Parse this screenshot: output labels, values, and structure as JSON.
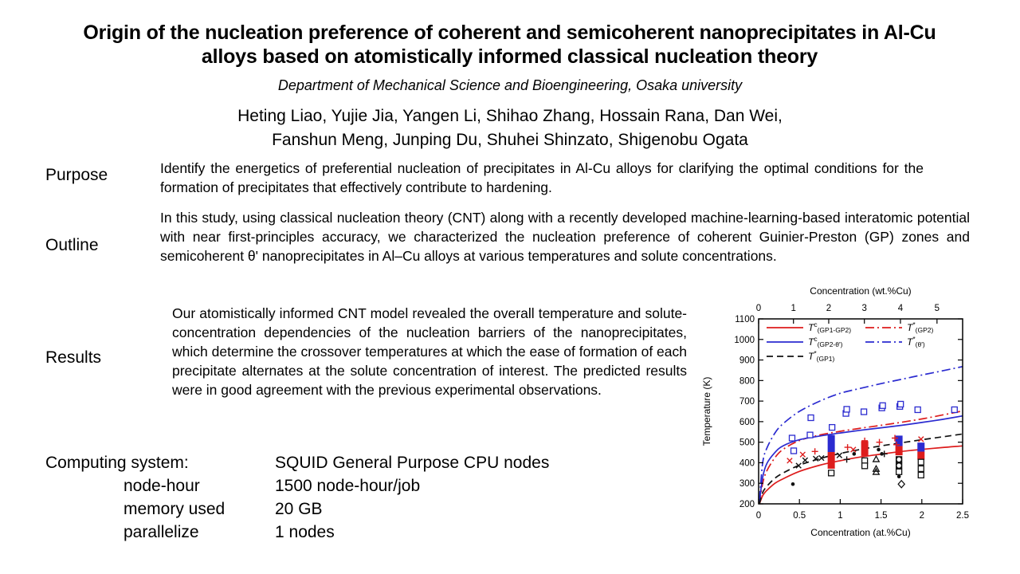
{
  "slide": {
    "title": "Origin of the nucleation preference of coherent and semicoherent nanoprecipitates in Al-Cu alloys based on atomistically informed classical nucleation theory",
    "department": "Department of Mechanical Science and Bioengineering, Osaka university",
    "authors": [
      "Heting Liao, Yujie Jia, Yangen Li, Shihao Zhang, Hossain Rana, Dan Wei,",
      "Fanshun Meng, Junping Du, Shuhei Shinzato, Shigenobu Ogata"
    ]
  },
  "sections": {
    "purpose": {
      "label": "Purpose",
      "text": "Identify the energetics of preferential nucleation of precipitates in Al-Cu alloys for clarifying the optimal conditions for the formation of precipitates that effectively contribute to hardening."
    },
    "outline": {
      "label": "Outline",
      "text": "In this study, using classical nucleation theory (CNT) along with a recently developed machine-learning-based interatomic potential with near first-principles accuracy, we characterized the nucleation preference of coherent Guinier-Preston (GP) zones and semicoherent θ' nanoprecipitates in Al–Cu alloys at various temperatures and solute concentrations."
    },
    "results": {
      "label": "Results",
      "text": "Our atomistically informed CNT model revealed the overall temperature and solute-concentration dependencies of the nucleation barriers of the nanoprecipitates, which determine the crossover temperatures at which the ease of formation of each precipitate alternates at the solute concentration of interest. The predicted results were in good agreement with the previous experimental observations."
    }
  },
  "computing": {
    "rows": [
      {
        "label": "Computing system:",
        "value": "SQUID General Purpose CPU nodes"
      },
      {
        "label": "node-hour",
        "value": "1500 node-hour/job"
      },
      {
        "label": "memory used",
        "value": "20 GB"
      },
      {
        "label": "parallelize",
        "value": "1 nodes"
      }
    ]
  },
  "chart_data": {
    "type": "line",
    "title": "",
    "colors": {
      "red": "#dd1c1c",
      "blue": "#2b2bd0",
      "black": "#111111"
    },
    "x_axis_bottom": {
      "label": "Concentration (at.%Cu)",
      "range": [
        0,
        2.5
      ],
      "ticks": [
        0,
        0.5,
        1,
        1.5,
        2,
        2.5
      ]
    },
    "x_axis_top": {
      "label": "Concentration (wt.%Cu)",
      "ticks": [
        0,
        1,
        2,
        3,
        4,
        5
      ],
      "tick_positions_at_pct": [
        0,
        0.427,
        0.859,
        1.296,
        1.738,
        2.186
      ]
    },
    "y_axis": {
      "label": "Temperature (K)",
      "range": [
        200,
        1100
      ],
      "ticks": [
        200,
        300,
        400,
        500,
        600,
        700,
        800,
        900,
        1000,
        1100
      ]
    },
    "grid": false,
    "legend_position": "top-left-inside",
    "curves": [
      {
        "main": "T",
        "sup": "c",
        "sub": "(GP1-GP2)",
        "color": "red",
        "dash": "solid",
        "legend_col": 0,
        "legend_row": 0,
        "points": [
          [
            0.01,
            200
          ],
          [
            0.05,
            240
          ],
          [
            0.1,
            265
          ],
          [
            0.2,
            300
          ],
          [
            0.3,
            322
          ],
          [
            0.5,
            358
          ],
          [
            0.75,
            388
          ],
          [
            1,
            410
          ],
          [
            1.25,
            428
          ],
          [
            1.5,
            442
          ],
          [
            1.75,
            455
          ],
          [
            2,
            465
          ],
          [
            2.25,
            474
          ],
          [
            2.5,
            482
          ]
        ]
      },
      {
        "main": "T",
        "sup": "*",
        "sub": "(GP2)",
        "color": "red",
        "dash": "dashdot",
        "legend_col": 1,
        "legend_row": 0,
        "points": [
          [
            0.01,
            200
          ],
          [
            0.05,
            300
          ],
          [
            0.1,
            360
          ],
          [
            0.2,
            425
          ],
          [
            0.3,
            465
          ],
          [
            0.5,
            508
          ],
          [
            0.75,
            535
          ],
          [
            1,
            553
          ],
          [
            1.25,
            568
          ],
          [
            1.5,
            582
          ],
          [
            1.75,
            597
          ],
          [
            2,
            613
          ],
          [
            2.25,
            632
          ],
          [
            2.5,
            652
          ]
        ]
      },
      {
        "main": "T",
        "sup": "c",
        "sub": "(GP2-θ')",
        "color": "blue",
        "dash": "solid",
        "legend_col": 0,
        "legend_row": 1,
        "points": [
          [
            0.01,
            210
          ],
          [
            0.05,
            330
          ],
          [
            0.1,
            395
          ],
          [
            0.2,
            450
          ],
          [
            0.3,
            482
          ],
          [
            0.5,
            512
          ],
          [
            0.75,
            530
          ],
          [
            1,
            545
          ],
          [
            1.25,
            558
          ],
          [
            1.5,
            570
          ],
          [
            1.75,
            582
          ],
          [
            2,
            596
          ],
          [
            2.25,
            611
          ],
          [
            2.5,
            628
          ]
        ]
      },
      {
        "main": "T",
        "sup": "*",
        "sub": "(θ')",
        "color": "blue",
        "dash": "dashdot",
        "legend_col": 1,
        "legend_row": 1,
        "points": [
          [
            0.01,
            220
          ],
          [
            0.05,
            400
          ],
          [
            0.1,
            470
          ],
          [
            0.2,
            545
          ],
          [
            0.3,
            590
          ],
          [
            0.5,
            650
          ],
          [
            0.75,
            700
          ],
          [
            1,
            738
          ],
          [
            1.25,
            762
          ],
          [
            1.5,
            785
          ],
          [
            1.75,
            806
          ],
          [
            2,
            827
          ],
          [
            2.25,
            847
          ],
          [
            2.5,
            868
          ]
        ]
      },
      {
        "main": "T",
        "sup": "*",
        "sub": "(GP1)",
        "color": "black",
        "dash": "dashed",
        "legend_col": 0,
        "legend_row": 2,
        "points": [
          [
            0.01,
            200
          ],
          [
            0.05,
            255
          ],
          [
            0.1,
            285
          ],
          [
            0.2,
            325
          ],
          [
            0.3,
            350
          ],
          [
            0.5,
            388
          ],
          [
            0.75,
            420
          ],
          [
            1,
            445
          ],
          [
            1.25,
            465
          ],
          [
            1.5,
            482
          ],
          [
            1.75,
            497
          ],
          [
            2,
            512
          ],
          [
            2.25,
            526
          ],
          [
            2.5,
            540
          ]
        ]
      }
    ],
    "bars": [
      {
        "x": 0.89,
        "blue": [
          452,
          535
        ],
        "red": [
          371,
          452
        ]
      },
      {
        "x": 1.3,
        "blue": null,
        "red": [
          433,
          505
        ]
      },
      {
        "x": 1.72,
        "blue": [
          481,
          532
        ],
        "red": [
          436,
          481
        ]
      },
      {
        "x": 1.99,
        "blue": [
          454,
          498
        ],
        "red": [
          415,
          454
        ]
      }
    ],
    "scatter": [
      {
        "name": "blue-open-square",
        "marker": "square",
        "color": "blue",
        "points": [
          [
            0.41,
            520
          ],
          [
            0.43,
            458
          ],
          [
            0.63,
            535
          ],
          [
            0.64,
            619
          ],
          [
            0.9,
            572
          ],
          [
            1.07,
            640
          ],
          [
            1.08,
            660
          ],
          [
            1.29,
            648
          ],
          [
            1.51,
            667
          ],
          [
            1.52,
            678
          ],
          [
            1.73,
            674
          ],
          [
            1.74,
            685
          ],
          [
            1.95,
            658
          ],
          [
            2.4,
            658
          ]
        ]
      },
      {
        "name": "black-x",
        "marker": "x",
        "color": "black",
        "points": [
          [
            0.49,
            386
          ],
          [
            0.57,
            412
          ],
          [
            0.7,
            420
          ],
          [
            0.77,
            423
          ],
          [
            0.99,
            436
          ]
        ]
      },
      {
        "name": "red-x",
        "marker": "x",
        "color": "red",
        "points": [
          [
            0.38,
            410
          ],
          [
            0.54,
            440
          ],
          [
            1.16,
            464
          ],
          [
            1.99,
            515
          ]
        ]
      },
      {
        "name": "red-plus",
        "marker": "plus",
        "color": "red",
        "points": [
          [
            0.69,
            455
          ],
          [
            1.09,
            475
          ],
          [
            1.3,
            507
          ],
          [
            1.48,
            500
          ],
          [
            1.67,
            520
          ],
          [
            1.69,
            488
          ]
        ]
      },
      {
        "name": "black-plus",
        "marker": "plus",
        "color": "black",
        "points": [
          [
            1.08,
            416
          ],
          [
            1.54,
            443
          ]
        ]
      },
      {
        "name": "black-dot",
        "marker": "dot",
        "color": "black",
        "points": [
          [
            0.42,
            296
          ],
          [
            1.17,
            443
          ],
          [
            1.47,
            464
          ],
          [
            1.51,
            443
          ],
          [
            1.72,
            333
          ]
        ]
      },
      {
        "name": "black-open-triangle",
        "marker": "triangle",
        "color": "black",
        "points": [
          [
            1.44,
            417
          ],
          [
            1.44,
            370
          ],
          [
            1.44,
            355
          ]
        ]
      },
      {
        "name": "black-open-diamond",
        "marker": "diamond",
        "color": "black",
        "points": [
          [
            1.75,
            296
          ]
        ]
      },
      {
        "name": "black-open-square",
        "marker": "square",
        "color": "black",
        "points": [
          [
            0.89,
            350
          ],
          [
            1.3,
            410
          ],
          [
            1.3,
            385
          ],
          [
            1.72,
            416
          ],
          [
            1.72,
            386
          ],
          [
            1.72,
            356
          ],
          [
            1.99,
            403
          ],
          [
            1.99,
            371
          ],
          [
            1.99,
            340
          ]
        ]
      },
      {
        "name": "black-open-circle",
        "marker": "circle",
        "color": "black",
        "points": [
          [
            1.72,
            416
          ],
          [
            1.72,
            386
          ]
        ]
      }
    ]
  }
}
